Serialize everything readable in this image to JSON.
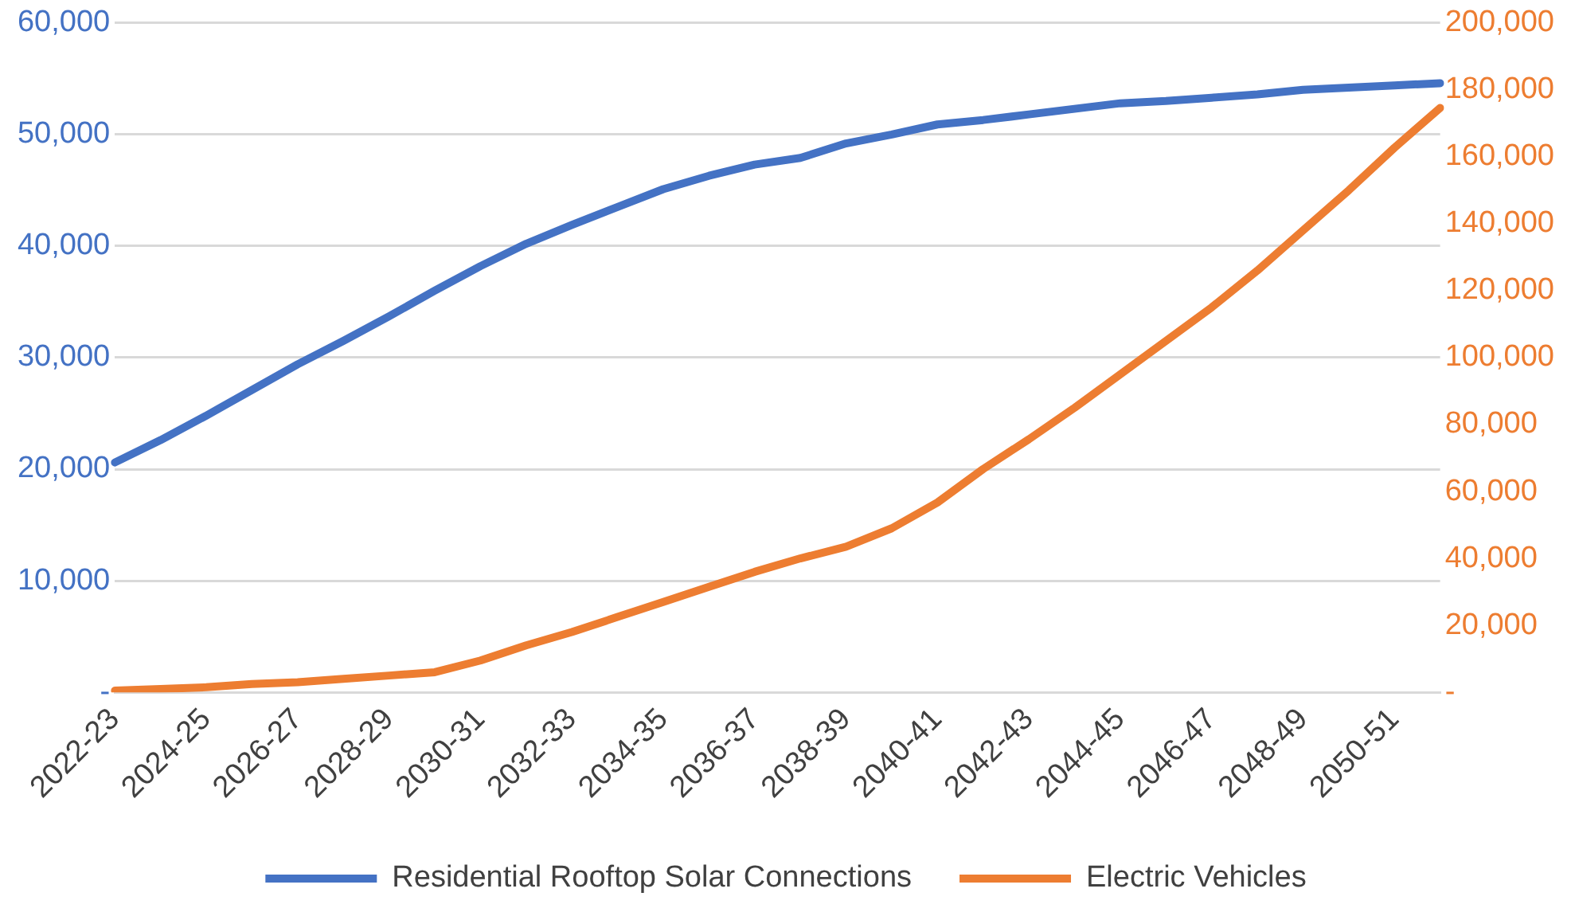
{
  "chart_data": {
    "type": "line",
    "categories": [
      "2022-23",
      null,
      "2024-25",
      null,
      "2026-27",
      null,
      "2028-29",
      null,
      "2030-31",
      null,
      "2032-33",
      null,
      "2034-35",
      null,
      "2036-37",
      null,
      "2038-39",
      null,
      "2040-41",
      null,
      "2042-43",
      null,
      "2044-45",
      null,
      "2046-47",
      null,
      "2048-49",
      null,
      "2050-51",
      null
    ],
    "series": [
      {
        "name": "Residential Rooftop Solar Connections",
        "color": "#4472c4",
        "values": [
          20600,
          22600,
          24800,
          27100,
          29400,
          31500,
          33700,
          36000,
          38200,
          40200,
          41900,
          43500,
          45100,
          46300,
          47300,
          47900,
          49200,
          50000,
          50900,
          51300,
          51800,
          52300,
          52800,
          53000,
          53300,
          53600,
          54000,
          54200,
          54400,
          54600
        ]
      },
      {
        "name": "Electric Vehicles",
        "color": "#ed7d31",
        "axis": "y2",
        "values": [
          500,
          1000,
          1500,
          2500,
          3000,
          4000,
          5000,
          6000,
          9500,
          14000,
          18000,
          22500,
          27000,
          31500,
          36000,
          40000,
          43500,
          49000,
          56700,
          66700,
          75600,
          85000,
          95000,
          105000,
          115000,
          126000,
          138000,
          150000,
          162700,
          174600
        ]
      }
    ],
    "ylim": [
      0,
      60000
    ],
    "yticks": [
      {
        "value": 0,
        "label": "-"
      },
      {
        "value": 10000,
        "label": "10,000"
      },
      {
        "value": 20000,
        "label": "20,000"
      },
      {
        "value": 30000,
        "label": "30,000"
      },
      {
        "value": 40000,
        "label": "40,000"
      },
      {
        "value": 50000,
        "label": "50,000"
      },
      {
        "value": 60000,
        "label": "60,000"
      }
    ],
    "y2lim": [
      0,
      200000
    ],
    "y2ticks": [
      {
        "value": 0,
        "label": "-"
      },
      {
        "value": 20000,
        "label": "20,000"
      },
      {
        "value": 40000,
        "label": "40,000"
      },
      {
        "value": 60000,
        "label": "60,000"
      },
      {
        "value": 80000,
        "label": "80,000"
      },
      {
        "value": 100000,
        "label": "100,000"
      },
      {
        "value": 120000,
        "label": "120,000"
      },
      {
        "value": 140000,
        "label": "140,000"
      },
      {
        "value": 160000,
        "label": "160,000"
      },
      {
        "value": 180000,
        "label": "180,000"
      },
      {
        "value": 200000,
        "label": "200,000"
      }
    ],
    "grid": "y",
    "legend": "bottom",
    "marker": "none",
    "line_style": "solid"
  }
}
